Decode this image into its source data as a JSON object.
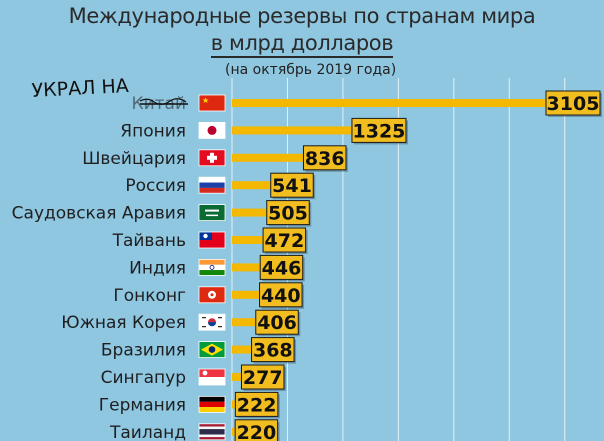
{
  "header": {
    "title": "Международные резервы по странам мира",
    "subtitle": "в млрд долларов",
    "note": "(на октябрь 2019 года)"
  },
  "handwriting": {
    "text": "УКРАЛ НА",
    "crossed_out": "Китай"
  },
  "colors": {
    "background": "#8fc6e0",
    "bar": "#f5b800",
    "label_box": "#f2bd1f",
    "grid": "#ffffff"
  },
  "chart_data": {
    "type": "bar",
    "orientation": "horizontal",
    "title": "Международные резервы по странам мира",
    "subtitle": "в млрд долларов",
    "categories": [
      "Китай",
      "Япония",
      "Швейцария",
      "Россия",
      "Саудовская Аравия",
      "Тайвань",
      "Индия",
      "Гонконг",
      "Южная Корея",
      "Бразилия",
      "Сингапур",
      "Германия",
      "Таиланд"
    ],
    "values": [
      3105,
      1325,
      836,
      541,
      505,
      472,
      446,
      440,
      406,
      368,
      277,
      222,
      220
    ],
    "flags": [
      "china-flag-icon",
      "japan-flag-icon",
      "switzerland-flag-icon",
      "russia-flag-icon",
      "saudi-arabia-flag-icon",
      "taiwan-flag-icon",
      "india-flag-icon",
      "hong-kong-flag-icon",
      "south-korea-flag-icon",
      "brazil-flag-icon",
      "singapore-flag-icon",
      "germany-flag-icon",
      "thailand-flag-icon"
    ],
    "xlim": [
      0,
      3300
    ],
    "grid": true
  }
}
